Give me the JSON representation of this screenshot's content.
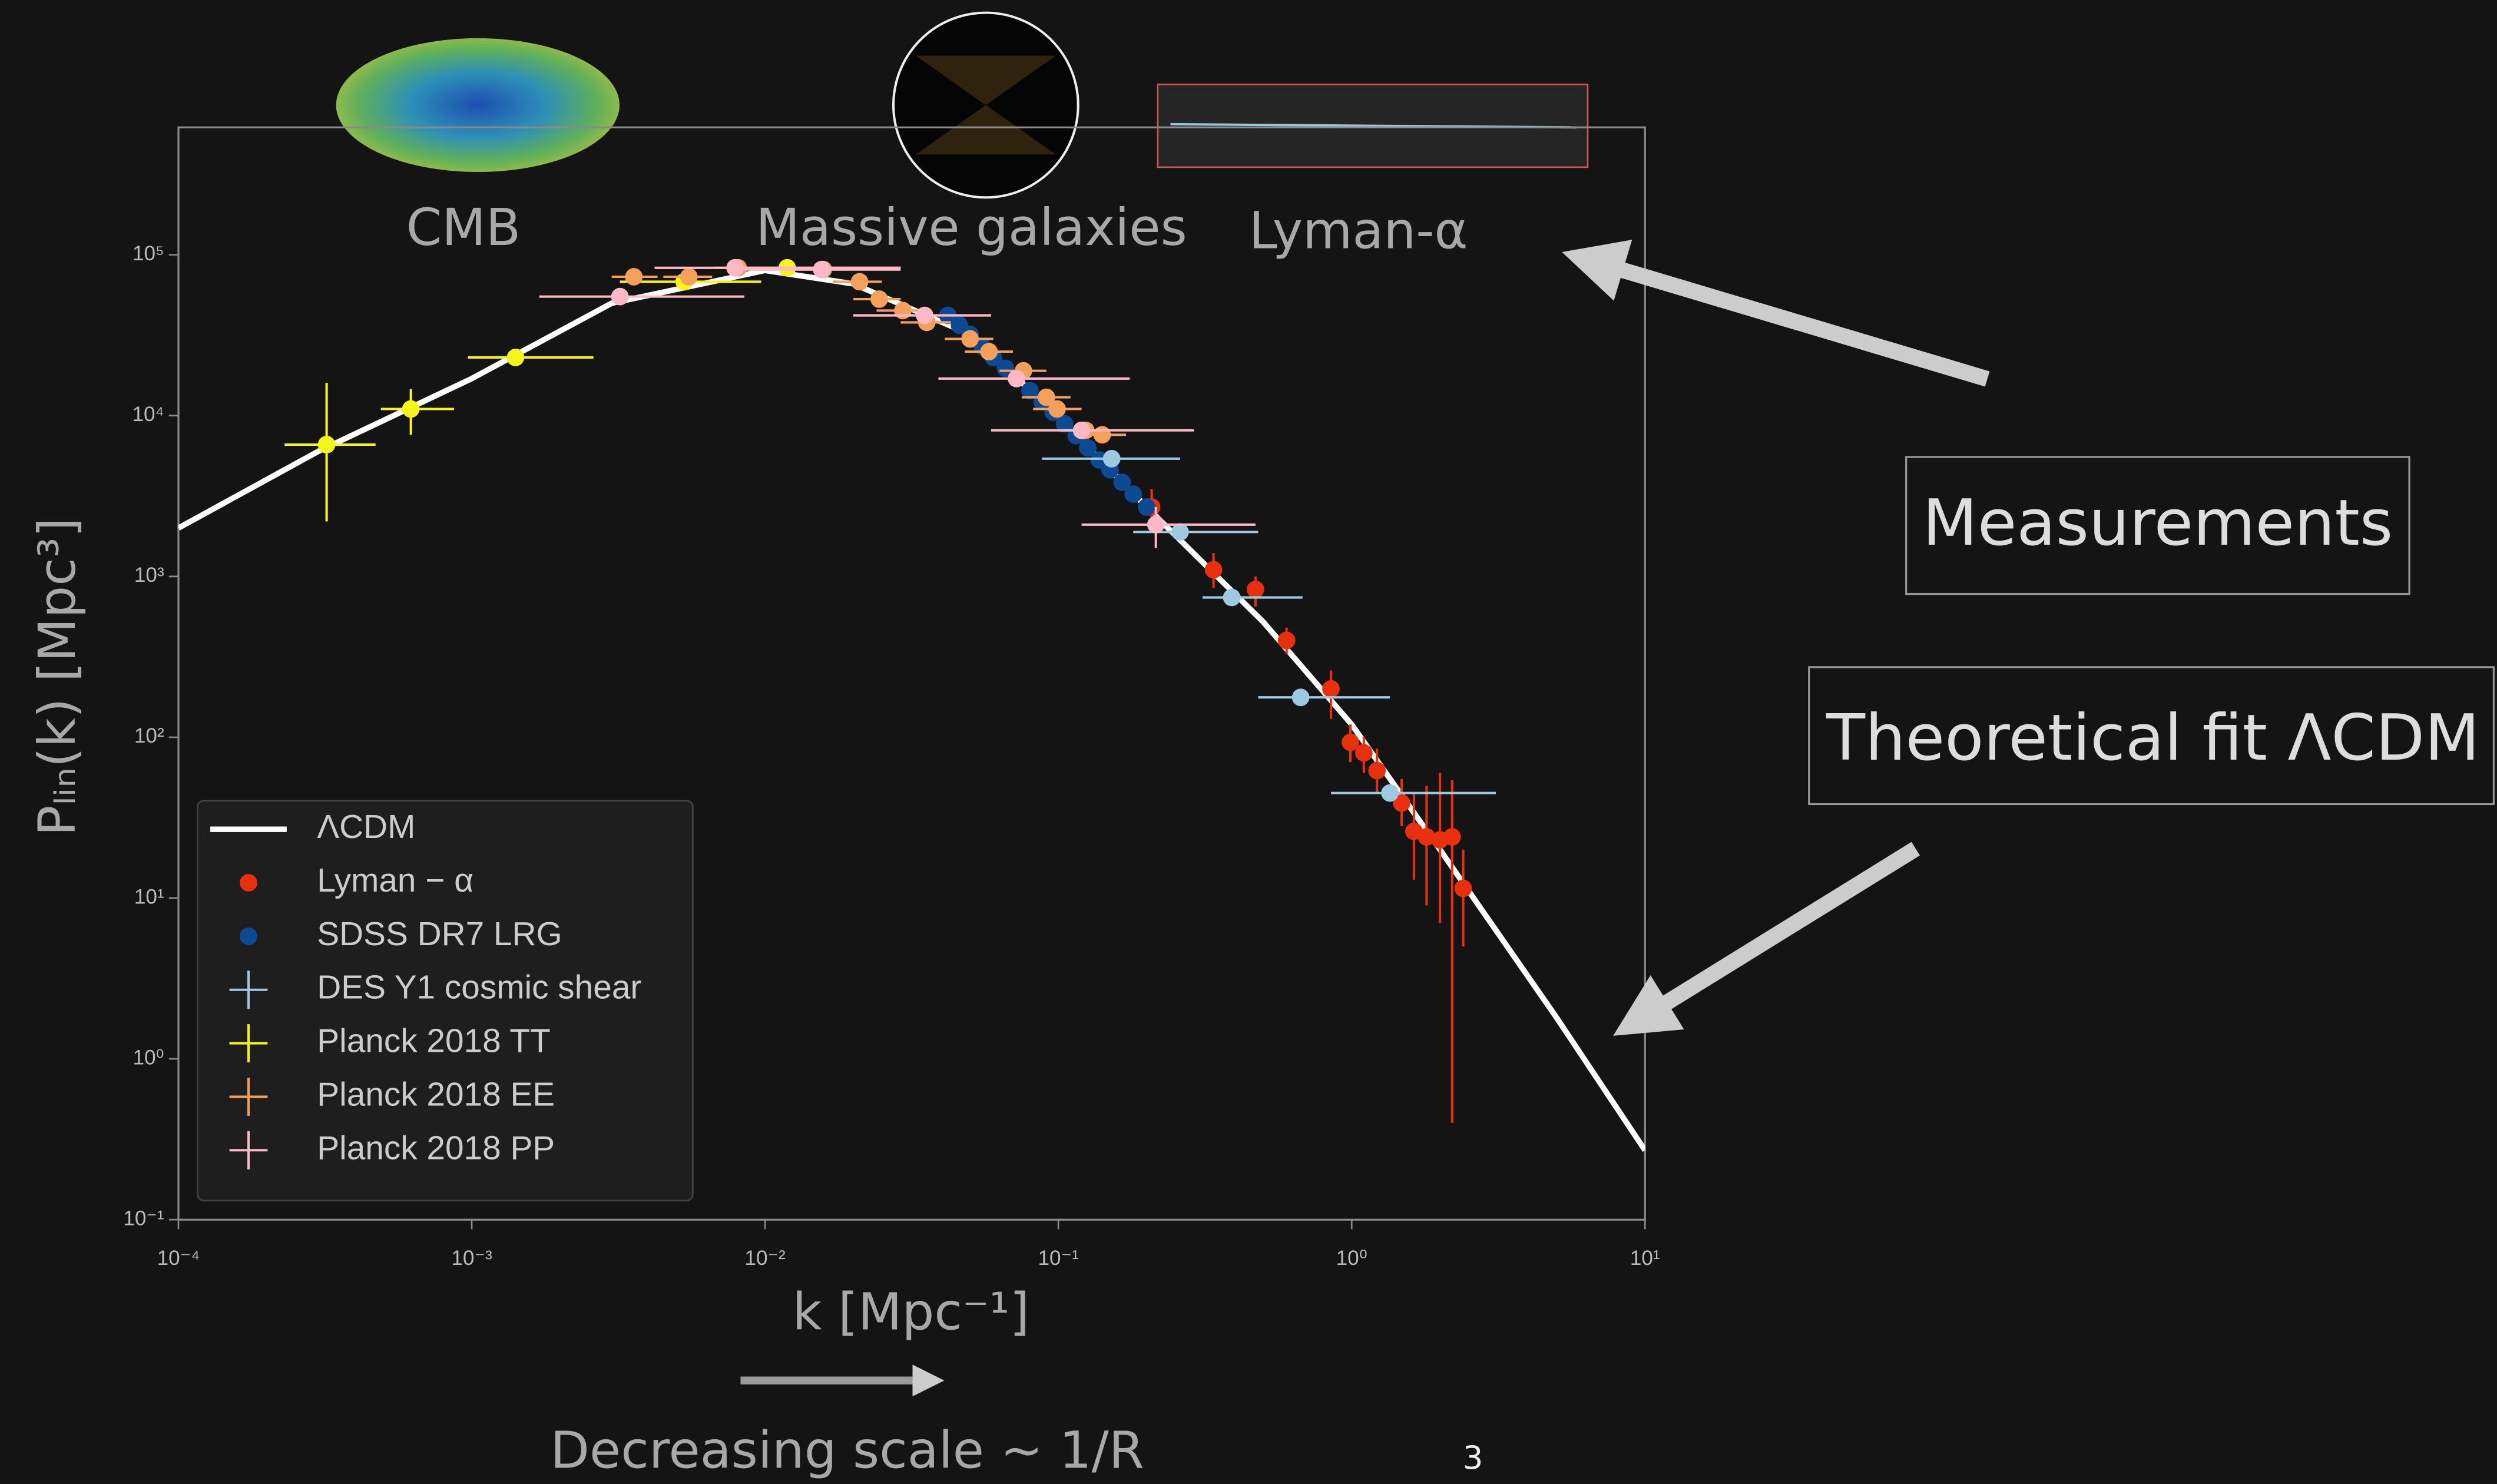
{
  "chart_data": {
    "type": "scatter",
    "xlabel": "k [Mpc⁻¹]",
    "ylabel": "Pₗᵢₙ(k)  [Mpc³]",
    "xlim": [
      0.0001,
      10
    ],
    "ylim": [
      0.1,
      620000
    ],
    "log_x": true,
    "log_y": true,
    "legend": "lower left",
    "xticks": [
      {
        "value": 0.0001,
        "label": "10⁻⁴"
      },
      {
        "value": 0.001,
        "label": "10⁻³"
      },
      {
        "value": 0.01,
        "label": "10⁻²"
      },
      {
        "value": 0.1,
        "label": "10⁻¹"
      },
      {
        "value": 1,
        "label": "10⁰"
      },
      {
        "value": 10,
        "label": "10¹"
      }
    ],
    "yticks": [
      {
        "value": 0.1,
        "label": "10⁻¹"
      },
      {
        "value": 1,
        "label": "10⁰"
      },
      {
        "value": 10,
        "label": "10¹"
      },
      {
        "value": 100,
        "label": "10²"
      },
      {
        "value": 1000,
        "label": "10³"
      },
      {
        "value": 10000,
        "label": "10⁴"
      },
      {
        "value": 100000,
        "label": "10⁵"
      }
    ],
    "series": [
      {
        "name": "ΛCDM",
        "color": "#ffffff",
        "marker": "line",
        "x": [
          0.0001,
          0.0003,
          0.001,
          0.003,
          0.01,
          0.02,
          0.05,
          0.1,
          0.2,
          0.5,
          1,
          2,
          5,
          10
        ],
        "values": [
          2000,
          6000,
          17000,
          50000,
          80000,
          66000,
          32000,
          9800,
          2700,
          520,
          120,
          20,
          1.8,
          0.27
        ]
      },
      {
        "name": "Lyman − α",
        "color": "#e8300e",
        "marker": "dot",
        "x": [
          0.208,
          0.338,
          0.47,
          0.6,
          0.85,
          0.99,
          1.1,
          1.22,
          1.48,
          1.63,
          1.8,
          2.0,
          2.2,
          2.4
        ],
        "values": [
          2700,
          1100,
          830,
          400,
          200,
          93,
          80,
          62,
          39,
          26,
          24,
          23,
          24,
          11.5
        ],
        "y_low": [
          2000,
          850,
          650,
          330,
          130,
          70,
          60,
          45,
          28,
          13,
          9,
          7,
          0.4,
          5
        ],
        "y_high": [
          3500,
          1400,
          1000,
          480,
          260,
          120,
          100,
          85,
          55,
          45,
          50,
          60,
          54,
          20
        ]
      },
      {
        "name": "SDSS DR7 LRG",
        "color": "#0d4a94",
        "marker": "dot",
        "x": [
          0.042,
          0.046,
          0.05,
          0.055,
          0.06,
          0.066,
          0.072,
          0.08,
          0.088,
          0.096,
          0.105,
          0.115,
          0.126,
          0.138,
          0.15,
          0.165,
          0.18,
          0.2
        ],
        "values": [
          42000,
          36500,
          32000,
          27000,
          23000,
          19700,
          17100,
          14300,
          12200,
          10500,
          8900,
          7500,
          6300,
          5300,
          4600,
          3850,
          3250,
          2700
        ]
      },
      {
        "name": "DES Y1 cosmic shear",
        "color": "#9ecae1",
        "marker": "cross",
        "x": [
          0.152,
          0.26,
          0.39,
          0.67,
          1.35
        ],
        "values": [
          5400,
          1890,
          740,
          177,
          45
        ],
        "x_low": [
          0.088,
          0.18,
          0.31,
          0.48,
          0.85
        ],
        "x_high": [
          0.26,
          0.48,
          0.68,
          1.35,
          3.1
        ]
      },
      {
        "name": "Planck 2018 TT",
        "color": "#f5f51a",
        "marker": "cross",
        "x": [
          0.00032,
          0.00062,
          0.00141,
          0.0053,
          0.0119
        ],
        "values": [
          6600,
          11000,
          23000,
          68000,
          83000
        ],
        "x_low": [
          0.00023,
          0.00049,
          0.00097,
          0.0032,
          0.0082
        ],
        "x_high": [
          0.00047,
          0.00087,
          0.0026,
          0.0097,
          0.029
        ],
        "y_low": [
          2200,
          7600,
          null,
          null,
          null
        ],
        "y_high": [
          16000,
          14600,
          null,
          null,
          null
        ]
      },
      {
        "name": "Planck 2018 EE",
        "color": "#f4a05a",
        "marker": "cross",
        "x": [
          0.00357,
          0.0055,
          0.0081,
          0.0158,
          0.021,
          0.0245,
          0.0295,
          0.0356,
          0.05,
          0.058,
          0.076,
          0.091,
          0.099,
          0.124,
          0.141
        ],
        "values": [
          73000,
          73000,
          83000,
          81000,
          68000,
          53000,
          45000,
          38000,
          30000,
          25000,
          19000,
          13000,
          11000,
          8100,
          7600
        ],
        "x_low": [
          0.003,
          0.0045,
          0.0067,
          0.013,
          0.017,
          0.02,
          0.024,
          0.029,
          0.041,
          0.048,
          0.063,
          0.075,
          0.082,
          0.1,
          0.115
        ],
        "x_high": [
          0.0043,
          0.0066,
          0.0097,
          0.019,
          0.025,
          0.029,
          0.035,
          0.043,
          0.06,
          0.07,
          0.091,
          0.11,
          0.12,
          0.15,
          0.17
        ]
      },
      {
        "name": "Planck 2018 PP",
        "color": "#ffb8c6",
        "marker": "cross",
        "x": [
          0.0032,
          0.0079,
          0.0156,
          0.035,
          0.072,
          0.12,
          0.215
        ],
        "values": [
          55000,
          83000,
          81000,
          42000,
          17000,
          8100,
          2100
        ],
        "x_low": [
          0.0017,
          0.0042,
          0.0082,
          0.02,
          0.039,
          0.059,
          0.12
        ],
        "x_high": [
          0.0085,
          0.029,
          0.029,
          0.059,
          0.175,
          0.29,
          0.47
        ],
        "y_low": [
          null,
          null,
          null,
          null,
          null,
          null,
          1500
        ],
        "y_high": [
          null,
          null,
          null,
          null,
          null,
          null,
          2700
        ]
      }
    ]
  },
  "slide": {
    "probe_cmb": "CMB",
    "probe_galaxies": "Massive galaxies",
    "probe_lyman": "Lyman-α",
    "measurements": "Measurements",
    "theory": "Theoretical fit ΛCDM",
    "scale_note": "Decreasing scale  ∼ 1/R",
    "page_number": "3"
  }
}
